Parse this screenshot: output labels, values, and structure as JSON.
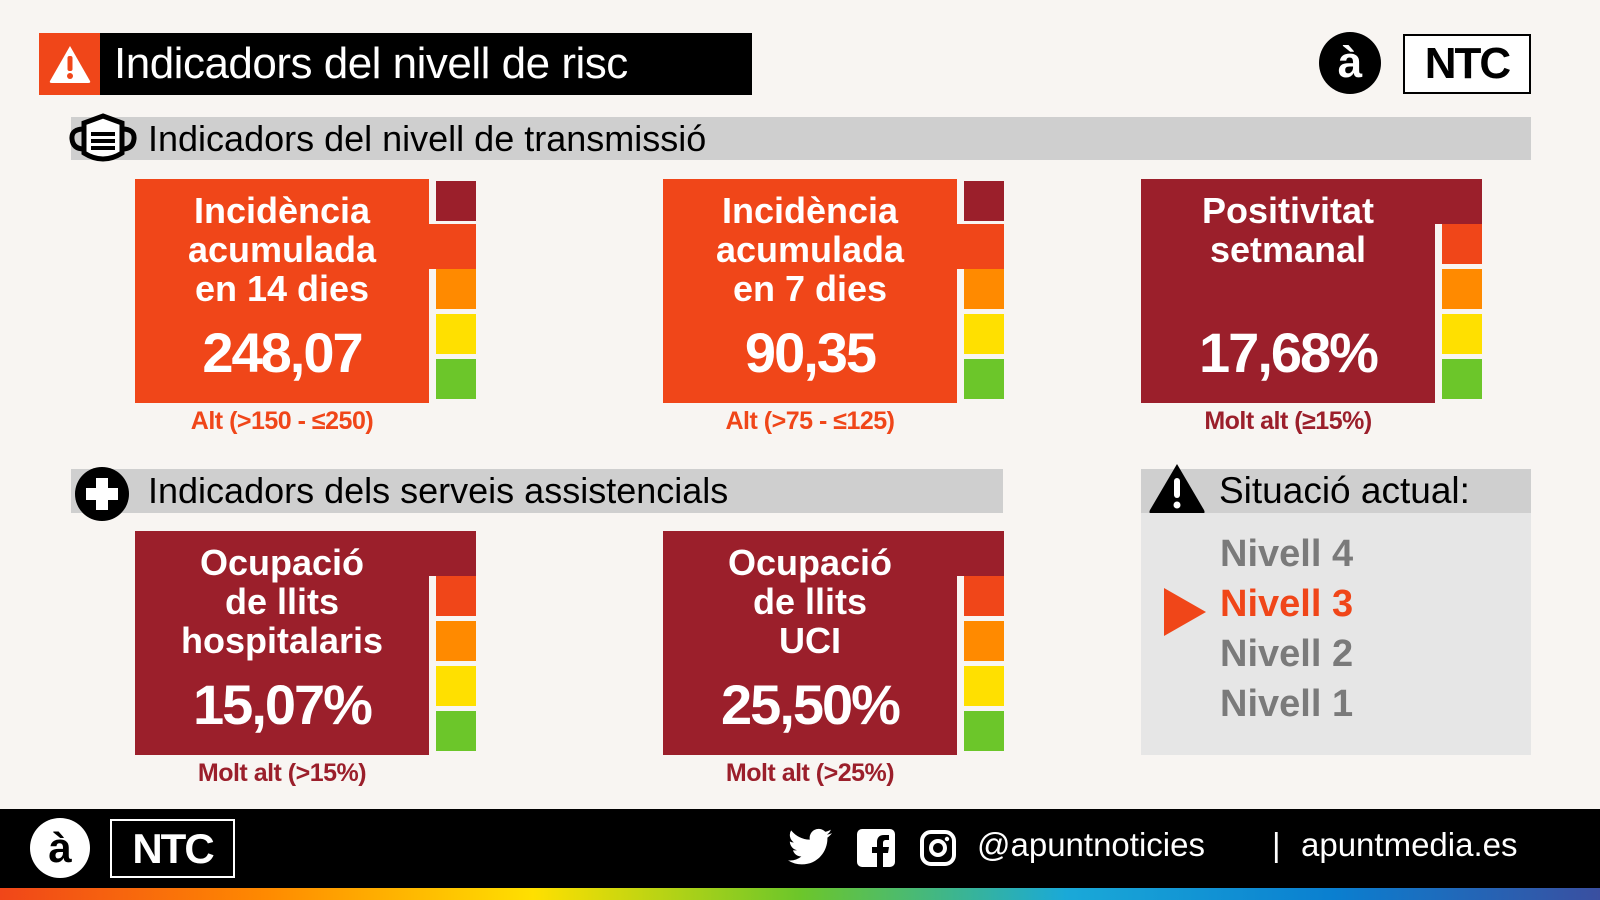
{
  "header": {
    "title": "Indicadors del nivell de risc",
    "logo_letter": "à",
    "logo_ntc": "NTC"
  },
  "colors": {
    "orange_red": "#f04619",
    "dark_red": "#9b1f2b",
    "orange": "#ff8a00",
    "yellow": "#ffe000",
    "green": "#6cc62a"
  },
  "sections": {
    "transmission": "Indicadors del nivell de transmissió",
    "services": "Indicadors dels serveis assistencials"
  },
  "cards": [
    {
      "label": "Incidència\nacumulada\nen 14 dies",
      "value": "248,07",
      "status": "Alt (>150 - ≤250)",
      "active_level": 1
    },
    {
      "label": "Incidència\nacumulada\nen 7 dies",
      "value": "90,35",
      "status": "Alt (>75 - ≤125)",
      "active_level": 1
    },
    {
      "label": "Positivitat\nsetmanal",
      "value": "17,68%",
      "status": "Molt alt (≥15%)",
      "active_level": 0
    },
    {
      "label": "Ocupació\nde llits\nhospitalaris",
      "value": "15,07%",
      "status": "Molt alt (>15%)",
      "active_level": 0
    },
    {
      "label": "Ocupació\nde llits\nUCI",
      "value": "25,50%",
      "status": "Molt alt (>25%)",
      "active_level": 0
    }
  ],
  "situation": {
    "title": "Situació actual:",
    "levels": [
      "Nivell 4",
      "Nivell 3",
      "Nivell 2",
      "Nivell 1"
    ],
    "current_index": 1
  },
  "footer": {
    "logo_letter": "à",
    "logo_ntc": "NTC",
    "handle": "@apuntnoticies",
    "separator": "|",
    "website": "apuntmedia.es",
    "icons": [
      "twitter-icon",
      "facebook-icon",
      "instagram-icon"
    ]
  }
}
